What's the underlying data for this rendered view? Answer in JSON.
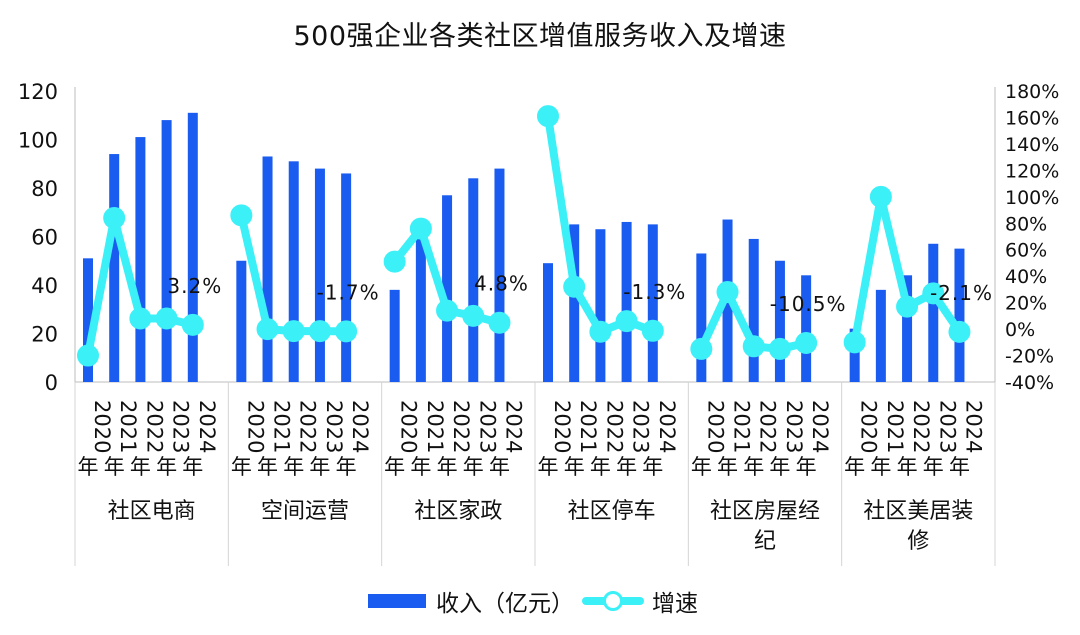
{
  "chart_data": {
    "type": "bar",
    "title": "500强企业各类社区增值服务收入及增速",
    "groups": [
      "社区电商",
      "空间运营",
      "社区家政",
      "社区停车",
      "社区房屋经纪",
      "社区美居装修"
    ],
    "years": [
      "2020年",
      "2021年",
      "2022年",
      "2023年",
      "2024年"
    ],
    "series": [
      {
        "name": "收入（亿元）",
        "type": "bar",
        "axis": "left",
        "color": "#1a5cf0",
        "values": [
          [
            51,
            94,
            101,
            108,
            111
          ],
          [
            50,
            93,
            91,
            88,
            86
          ],
          [
            38,
            60,
            77,
            84,
            88
          ],
          [
            49,
            65,
            63,
            66,
            65
          ],
          [
            53,
            67,
            59,
            50,
            44
          ],
          [
            22,
            38,
            44,
            57,
            55
          ]
        ]
      },
      {
        "name": "增速",
        "type": "line",
        "axis": "right",
        "color": "#3cf0f8",
        "values": [
          [
            -20,
            84,
            8,
            8,
            3.2
          ],
          [
            86,
            0,
            -1.5,
            -1.5,
            -1.7
          ],
          [
            51,
            76,
            14,
            10,
            4.8
          ],
          [
            161,
            32,
            -2,
            6,
            -1.3
          ],
          [
            -15,
            28,
            -13,
            -15,
            -10.5
          ],
          [
            -10,
            100,
            17,
            27,
            -2.1
          ]
        ]
      }
    ],
    "annotations": [
      "3.2%",
      "-1.7%",
      "4.8%",
      "-1.3%",
      "-10.5%",
      "-2.1%"
    ],
    "y_left": {
      "min": 0,
      "max": 120,
      "ticks": [
        0,
        20,
        40,
        60,
        80,
        100,
        120
      ]
    },
    "y_right": {
      "min": -40,
      "max": 180,
      "ticks": [
        "-40%",
        "-20%",
        "0%",
        "20%",
        "40%",
        "60%",
        "80%",
        "100%",
        "120%",
        "140%",
        "160%",
        "180%"
      ]
    },
    "legend_position": "bottom"
  }
}
